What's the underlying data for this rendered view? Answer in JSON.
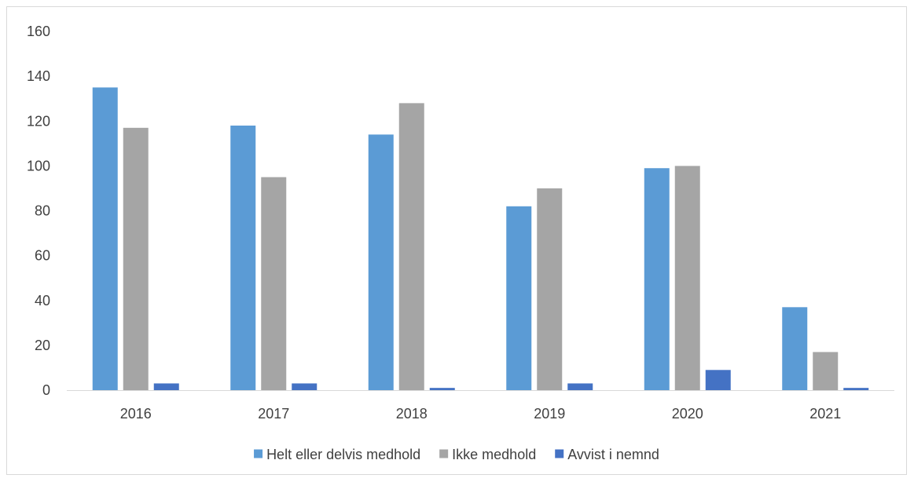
{
  "chart_data": {
    "type": "bar",
    "title": "",
    "xlabel": "",
    "ylabel": "",
    "categories": [
      "2016",
      "2017",
      "2018",
      "2019",
      "2020",
      "2021"
    ],
    "series": [
      {
        "name": "Helt eller delvis medhold",
        "values": [
          135,
          118,
          114,
          82,
          99,
          37
        ],
        "color": "#5b9bd5"
      },
      {
        "name": "Ikke medhold",
        "values": [
          117,
          95,
          128,
          90,
          100,
          17
        ],
        "color": "#a5a5a5"
      },
      {
        "name": "Avvist i nemnd",
        "values": [
          3,
          3,
          1,
          3,
          9,
          1
        ],
        "color": "#4472c4"
      }
    ],
    "ylim": [
      0,
      160
    ],
    "yticks": [
      0,
      20,
      40,
      60,
      80,
      100,
      120,
      140,
      160
    ],
    "grid": false,
    "legend_position": "bottom"
  }
}
